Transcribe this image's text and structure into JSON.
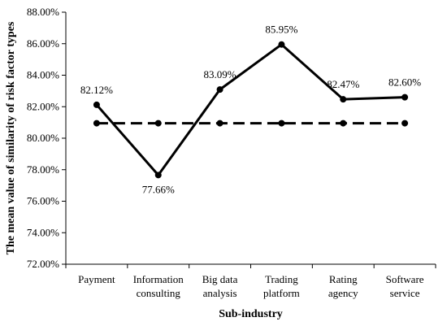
{
  "chart_data": {
    "type": "line",
    "title": "",
    "xlabel": "Sub-industry",
    "ylabel": "The mean value of similarity of risk factor types",
    "categories": [
      [
        "Payment"
      ],
      [
        "Information",
        "consulting"
      ],
      [
        "Big data",
        "analysis"
      ],
      [
        "Trading",
        "platform"
      ],
      [
        "Rating",
        "agency"
      ],
      [
        "Software",
        "service"
      ]
    ],
    "ylim": [
      72,
      88
    ],
    "yticks": [
      "72.00%",
      "74.00%",
      "76.00%",
      "78.00%",
      "80.00%",
      "82.00%",
      "84.00%",
      "86.00%",
      "88.00%"
    ],
    "grid": false,
    "legend": "none",
    "series": [
      {
        "style": "solid",
        "values": [
          82.12,
          77.66,
          83.09,
          85.95,
          82.47,
          82.6
        ],
        "labels": [
          "82.12%",
          "77.66%",
          "83.09%",
          "85.95%",
          "82.47%",
          "82.60%"
        ],
        "label_positions": [
          "above",
          "below",
          "above",
          "above",
          "above",
          "above"
        ]
      },
      {
        "style": "dashed",
        "values": [
          80.95,
          80.95,
          80.95,
          80.95,
          80.95,
          80.95
        ]
      }
    ],
    "colors": {
      "line": "#000000",
      "axis": "#000000"
    }
  }
}
